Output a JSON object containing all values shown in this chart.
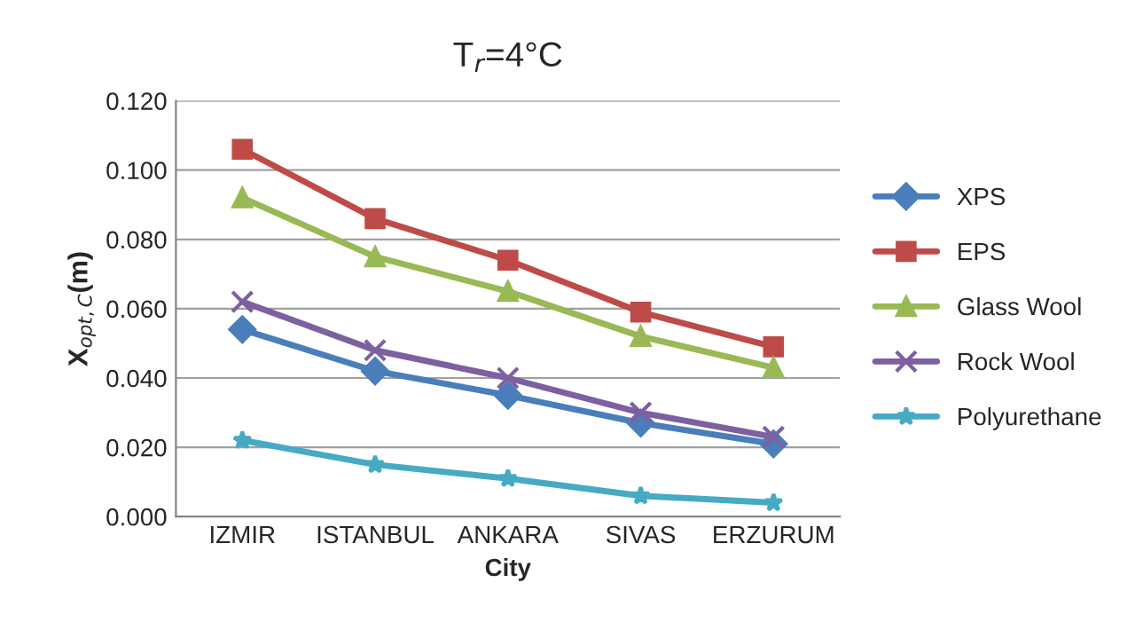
{
  "chart_data": {
    "type": "line",
    "title": "T$_{r}$=4°C",
    "xlabel": "City",
    "ylabel": "X$_{opt,C}$(m)",
    "categories": [
      "IZMIR",
      "ISTANBUL",
      "ANKARA",
      "SIVAS",
      "ERZURUM"
    ],
    "series": [
      {
        "name": "XPS",
        "color": "#4a7ebb",
        "marker": "diamond",
        "values": [
          0.054,
          0.042,
          0.035,
          0.027,
          0.021
        ]
      },
      {
        "name": "EPS",
        "color": "#be4b48",
        "marker": "square",
        "values": [
          0.106,
          0.086,
          0.074,
          0.059,
          0.049
        ]
      },
      {
        "name": "Glass Wool",
        "color": "#98b954",
        "marker": "triangle",
        "values": [
          0.092,
          0.075,
          0.065,
          0.052,
          0.043
        ]
      },
      {
        "name": "Rock Wool",
        "color": "#7d60a0",
        "marker": "cross",
        "values": [
          0.062,
          0.048,
          0.04,
          0.03,
          0.023
        ]
      },
      {
        "name": "Polyurethane",
        "color": "#46aac5",
        "marker": "star",
        "values": [
          0.022,
          0.015,
          0.011,
          0.006,
          0.004
        ]
      }
    ],
    "ylim": [
      0,
      0.12
    ],
    "yticks": [
      {
        "value": 0,
        "label": "0.000"
      },
      {
        "value": 0.02,
        "label": "0.020"
      },
      {
        "value": 0.04,
        "label": "0.040"
      },
      {
        "value": 0.06,
        "label": "0.060"
      },
      {
        "value": 0.08,
        "label": "0.080"
      },
      {
        "value": 0.1,
        "label": "0.100"
      },
      {
        "value": 0.12,
        "label": "0.120"
      }
    ],
    "grid": "y",
    "legend": "right",
    "line_style": "solid"
  }
}
